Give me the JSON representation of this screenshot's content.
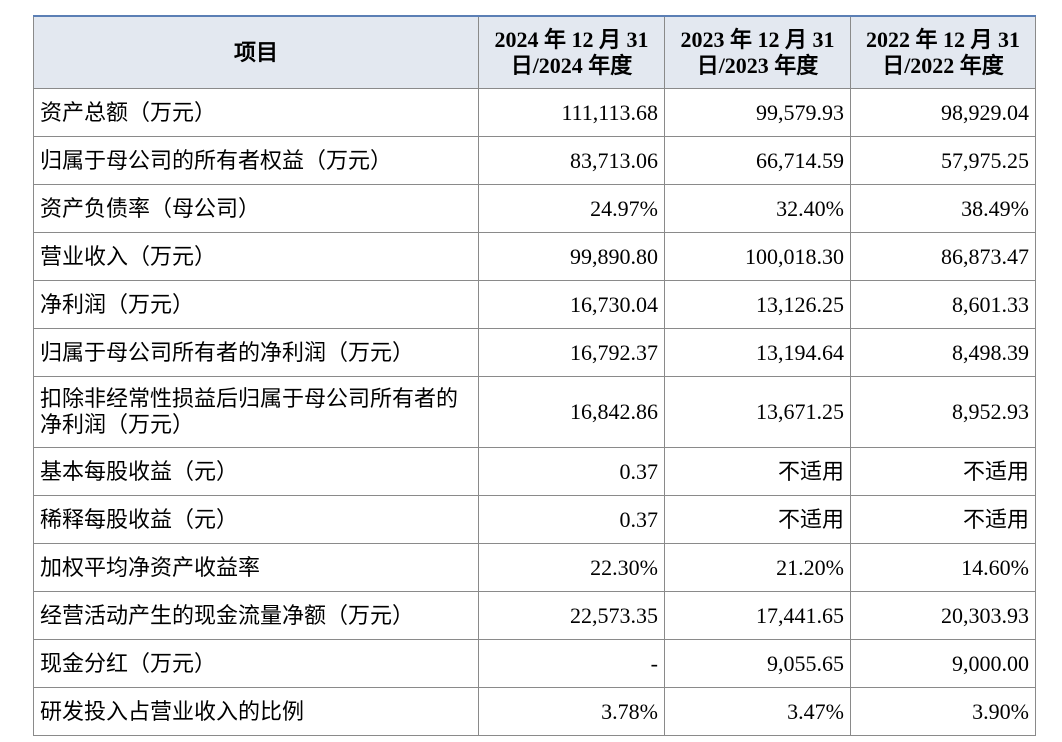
{
  "table": {
    "header": [
      "项目",
      "2024 年 12 月 31 日/2024 年度",
      "2023 年 12 月 31 日/2023 年度",
      "2022 年 12 月 31 日/2022 年度"
    ],
    "rows": [
      [
        "资产总额（万元）",
        "111,113.68",
        "99,579.93",
        "98,929.04"
      ],
      [
        "归属于母公司的所有者权益（万元）",
        "83,713.06",
        "66,714.59",
        "57,975.25"
      ],
      [
        "资产负债率（母公司）",
        "24.97%",
        "32.40%",
        "38.49%"
      ],
      [
        "营业收入（万元）",
        "99,890.80",
        "100,018.30",
        "86,873.47"
      ],
      [
        "净利润（万元）",
        "16,730.04",
        "13,126.25",
        "8,601.33"
      ],
      [
        "归属于母公司所有者的净利润（万元）",
        "16,792.37",
        "13,194.64",
        "8,498.39"
      ],
      [
        "扣除非经常性损益后归属于母公司所有者的净利润（万元）",
        "16,842.86",
        "13,671.25",
        "8,952.93"
      ],
      [
        "基本每股收益（元）",
        "0.37",
        "不适用",
        "不适用"
      ],
      [
        "稀释每股收益（元）",
        "0.37",
        "不适用",
        "不适用"
      ],
      [
        "加权平均净资产收益率",
        "22.30%",
        "21.20%",
        "14.60%"
      ],
      [
        "经营活动产生的现金流量净额（万元）",
        "22,573.35",
        "17,441.65",
        "20,303.93"
      ],
      [
        "现金分红（万元）",
        "-",
        "9,055.65",
        "9,000.00"
      ],
      [
        "研发投入占营业收入的比例",
        "3.78%",
        "3.47%",
        "3.90%"
      ]
    ]
  }
}
